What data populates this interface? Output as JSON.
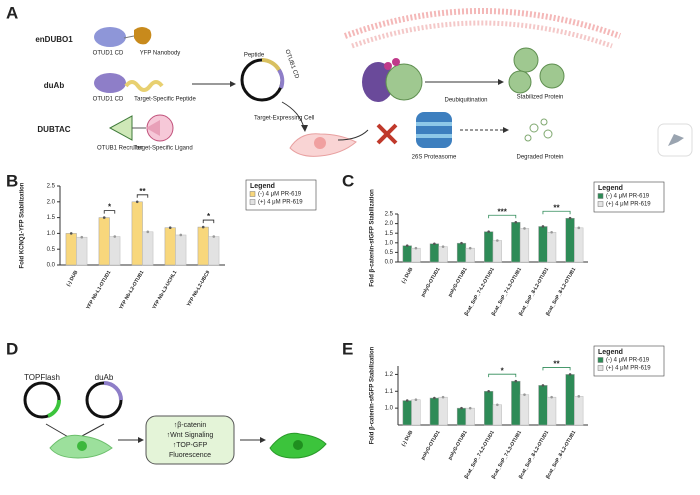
{
  "panel_labels": [
    "A",
    "B",
    "C",
    "D",
    "E"
  ],
  "diagram_a": {
    "constructs": [
      {
        "name": "enDUBO1",
        "parts": [
          "OTUD1 CD",
          "YFP Nanobody"
        ]
      },
      {
        "name": "duAb",
        "parts": [
          "OTUD1 CD",
          "Target-Specific Peptide"
        ]
      },
      {
        "name": "DUBTAC",
        "parts": [
          "OTUB1 Recruiter",
          "Target-Specific Ligand"
        ]
      }
    ],
    "plasmid": [
      "Peptide",
      "OTUB1 CD"
    ],
    "cell": "Target-Expressing Cell",
    "steps": [
      "Deubiquitination",
      "Stabilized Protein",
      "26S Proteasome",
      "Degraded Protein"
    ]
  },
  "diagram_d": {
    "plasmids": [
      "TOPFlash",
      "duAb"
    ],
    "effects": [
      "↑β-catenin",
      "↑Wnt Signaling",
      "↑TOP-GFP",
      "Fluorescence"
    ]
  },
  "chart_data": [
    {
      "type": "bar",
      "y_label": "Fold KCNQ1-YFP Stabilization",
      "categories": [
        "(-) DUB",
        "YFP Nb-L1-OTUD1",
        "YFP Nb-L2-OTUB1",
        "YFP Nb-L3-UCHL1",
        "YFP Nb-L2-UBC9"
      ],
      "series": [
        {
          "name": "(-) 4 μM PR-619",
          "color": "#f8d77c",
          "values": [
            1.0,
            1.5,
            2.0,
            1.18,
            1.2
          ]
        },
        {
          "name": "(+) 4 μM PR-619",
          "color": "#e2e2e2",
          "values": [
            0.88,
            0.9,
            1.05,
            0.95,
            0.9
          ]
        }
      ],
      "ylim": [
        0,
        2.5
      ],
      "yticks": [
        {
          "value": 0,
          "label": "0.0"
        },
        0.5,
        {
          "value": 1,
          "label": "1.0"
        },
        1.5,
        {
          "value": 2,
          "label": "2.0"
        },
        2.5
      ],
      "legend_title": "Legend",
      "annotations": [
        "*",
        "**",
        "*"
      ]
    },
    {
      "type": "bar",
      "y_label": "Fold β-catenin-sfGFP Stabilization",
      "categories": [
        "(-) DUB",
        "polyG-OTUD1",
        "polyG-OTUB1",
        "βcat_SnP_7-L2-OTUD1",
        "βcat_SnP_7-L3-OTUB1",
        "βcat_SnP_8-L2-OTUD1",
        "βcat_SnP_8-L2-OTUB1"
      ],
      "series": [
        {
          "name": "(-) 4 μM PR-619",
          "color": "#2e8b57",
          "values": [
            0.85,
            0.95,
            0.98,
            1.58,
            2.07,
            1.85,
            2.28
          ]
        },
        {
          "name": "(+) 4 μM PR-619",
          "color": "#e4e4e4",
          "values": [
            0.72,
            0.8,
            0.72,
            1.12,
            1.75,
            1.55,
            1.78
          ]
        }
      ],
      "ylim": [
        0,
        2.5
      ],
      "yticks": [
        {
          "value": 0,
          "label": "0.0"
        },
        0.5,
        {
          "value": 1,
          "label": "1.0"
        },
        1.5,
        {
          "value": 2,
          "label": "2.0"
        },
        2.5
      ],
      "legend_title": "Legend",
      "annotations": [
        "***",
        "**"
      ]
    },
    {
      "type": "bar",
      "y_label": "Fold β-catenin-sfGFP Stabilization",
      "categories": [
        "(-) DUB",
        "polyG-OTUD1",
        "polyG-OTUB1",
        "βcat_SnP_7-L2-OTUD1",
        "βcat_SnP_7-L3-OTUB1",
        "βcat_SnP_8-L2-OTUD1",
        "βcat_SnP_8-L2-OTUB1"
      ],
      "series": [
        {
          "name": "(-) 4 μM PR-619",
          "color": "#2e8b57",
          "values": [
            1.045,
            1.06,
            1.0,
            1.1,
            1.16,
            1.135,
            1.2
          ]
        },
        {
          "name": "(+) 4 μM PR-619",
          "color": "#e4e4e4",
          "values": [
            1.05,
            1.065,
            1.0,
            1.02,
            1.08,
            1.065,
            1.07
          ]
        }
      ],
      "ylim": [
        0.9,
        1.25
      ],
      "yticks": [
        {
          "value": 1,
          "label": "1.0"
        },
        1.1,
        1.2
      ],
      "legend_title": "Legend",
      "annotations": [
        "*",
        "**"
      ]
    }
  ]
}
